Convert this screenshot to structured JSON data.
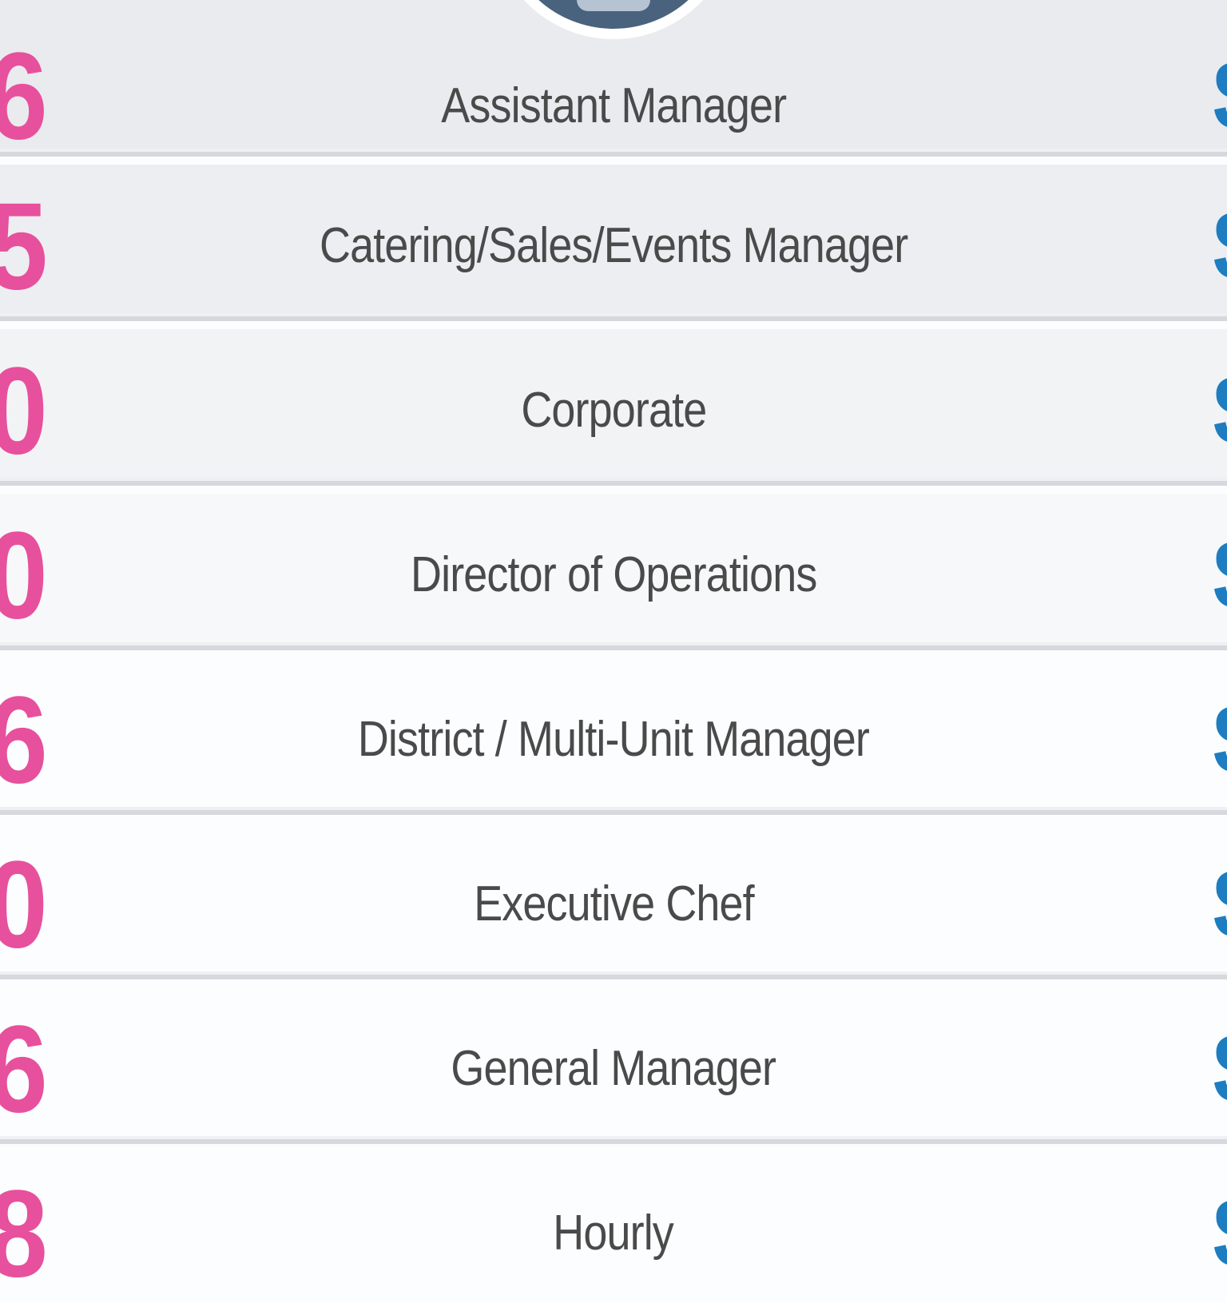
{
  "badge": {
    "icon": "circle-badge-icon",
    "circle_color": "#49627d",
    "ring_color": "#ffffff",
    "inner_icon_color": "#b6c3d3"
  },
  "table": {
    "colors": {
      "left_value": "#e7509c",
      "right_value": "#1d7dc0",
      "title": "#4a4a4a",
      "gap": "#fcfdfe"
    },
    "rows": [
      {
        "left_value_visible": "6",
        "title": "Assistant Manager",
        "right_value_visible": "$"
      },
      {
        "left_value_visible": "5",
        "title": "Catering/Sales/Events Manager",
        "right_value_visible": "$"
      },
      {
        "left_value_visible": "0",
        "title": "Corporate",
        "right_value_visible": "$"
      },
      {
        "left_value_visible": "0",
        "title": "Director of Operations",
        "right_value_visible": "$"
      },
      {
        "left_value_visible": "6",
        "title": "District / Multi-Unit Manager",
        "right_value_visible": "$"
      },
      {
        "left_value_visible": "0",
        "title": "Executive Chef",
        "right_value_visible": "$"
      },
      {
        "left_value_visible": "6",
        "title": "General Manager",
        "right_value_visible": "$"
      },
      {
        "left_value_visible": "8",
        "title": "Hourly",
        "right_value_visible": "$"
      }
    ]
  }
}
